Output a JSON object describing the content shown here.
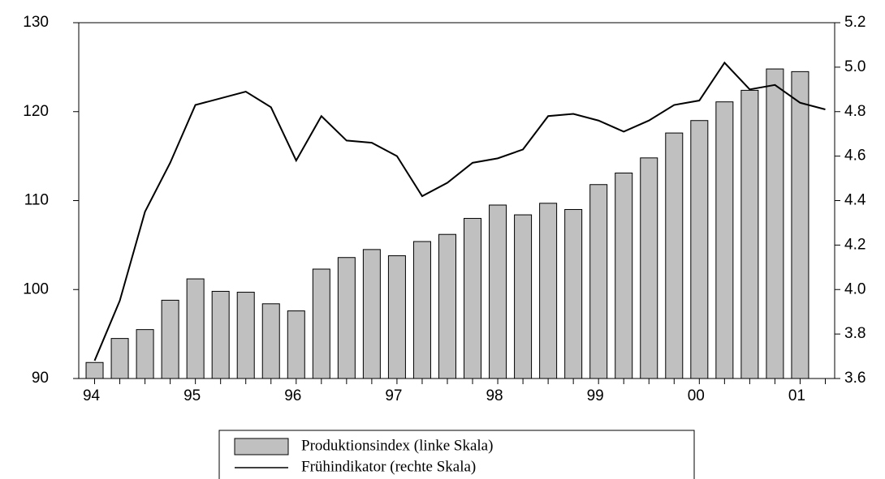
{
  "chart_data": {
    "type": "bar_line",
    "categories": [
      "94",
      null,
      null,
      null,
      "95",
      null,
      null,
      null,
      "96",
      null,
      null,
      null,
      "97",
      null,
      null,
      null,
      "98",
      null,
      null,
      null,
      "99",
      null,
      null,
      null,
      "00",
      null,
      null,
      null,
      "01",
      null
    ],
    "series": [
      {
        "name": "Produktionsindex (linke Skala)",
        "type": "bar",
        "color": "#c0c0c0",
        "values": [
          91.8,
          94.5,
          95.5,
          98.8,
          101.2,
          99.8,
          99.7,
          98.4,
          97.6,
          102.3,
          103.6,
          104.5,
          103.8,
          105.4,
          106.2,
          108.0,
          109.5,
          108.4,
          109.7,
          109.0,
          111.8,
          113.1,
          114.8,
          117.6,
          119.0,
          121.1,
          122.4,
          124.8,
          124.5,
          null
        ]
      },
      {
        "name": "Frühindikator (rechte Skala)",
        "type": "line",
        "color": "#000000",
        "axis": "y2",
        "values": [
          3.68,
          3.95,
          4.35,
          4.57,
          4.83,
          4.86,
          4.89,
          4.82,
          4.58,
          4.78,
          4.67,
          4.66,
          4.6,
          4.42,
          4.48,
          4.57,
          4.59,
          4.63,
          4.78,
          4.79,
          4.76,
          4.71,
          4.76,
          4.83,
          4.85,
          5.02,
          4.9,
          4.92,
          4.84,
          4.81
        ]
      }
    ],
    "ylim": [
      90,
      130
    ],
    "yticks": [
      90,
      100,
      110,
      120,
      130
    ],
    "y2lim": [
      3.6,
      5.2
    ],
    "y2ticks": [
      3.6,
      3.8,
      {
        "value": 4.0,
        "label": "4.0"
      },
      4.2,
      4.4,
      4.6,
      4.8,
      {
        "value": 5.0,
        "label": "5.0"
      },
      5.2
    ]
  }
}
